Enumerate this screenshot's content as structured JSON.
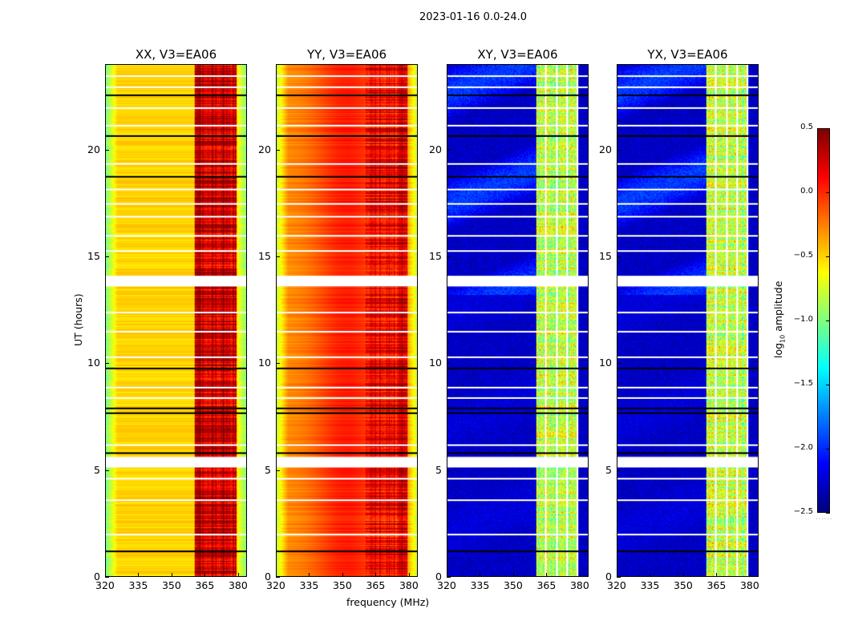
{
  "chart_data": {
    "type": "heatmap",
    "title": "2023-01-16 0.0-24.0",
    "xlabel": "frequency (MHz)",
    "ylabel": "UT (hours)",
    "xlim": [
      320,
      384
    ],
    "ylim": [
      0,
      24
    ],
    "xticks": [
      "320",
      "335",
      "350",
      "365",
      "380"
    ],
    "yticks": [
      "0",
      "5",
      "10",
      "15",
      "20"
    ],
    "colormap": "jet",
    "colorbar": {
      "label": "log10 amplitude",
      "label_main": "log",
      "label_sub": "10",
      "label_rest": " amplitude",
      "range": [
        -2.5,
        0.5
      ],
      "ticks": [
        "0.5",
        "0.0",
        "−0.5",
        "−1.0",
        "−1.5",
        "−2.0",
        "−2.5"
      ]
    },
    "panels": [
      {
        "title": "XX, V3=EA06",
        "background_level": -0.6,
        "rfi_level": 0.3
      },
      {
        "title": "YY, V3=EA06",
        "background_level": -0.3,
        "rfi_level": 0.2
      },
      {
        "title": "XY, V3=EA06",
        "background_level": -2.3,
        "rfi_level": -0.8
      },
      {
        "title": "YX, V3=EA06",
        "background_level": -2.3,
        "rfi_level": -0.8
      }
    ],
    "rfi_band_mhz": [
      360.4,
      379.6
    ],
    "flagged_channels_mhz": [
      364.4,
      369.4,
      374.2,
      378.9
    ],
    "flagged_time_ranges_hours": [
      [
        5.1,
        5.6
      ],
      [
        13.6,
        14.1
      ]
    ],
    "scan_boundaries_hours": [
      1.2,
      5.8,
      7.7,
      7.9,
      9.8,
      18.8,
      20.7,
      22.6
    ],
    "flagged_time_lines_hours": [
      2.0,
      3.6,
      4.6,
      6.2,
      8.4,
      8.9,
      10.3,
      11.5,
      12.4,
      15.3,
      16.0,
      16.9,
      17.5,
      18.2,
      19.4,
      21.2,
      22.0,
      23.0,
      23.5
    ]
  }
}
